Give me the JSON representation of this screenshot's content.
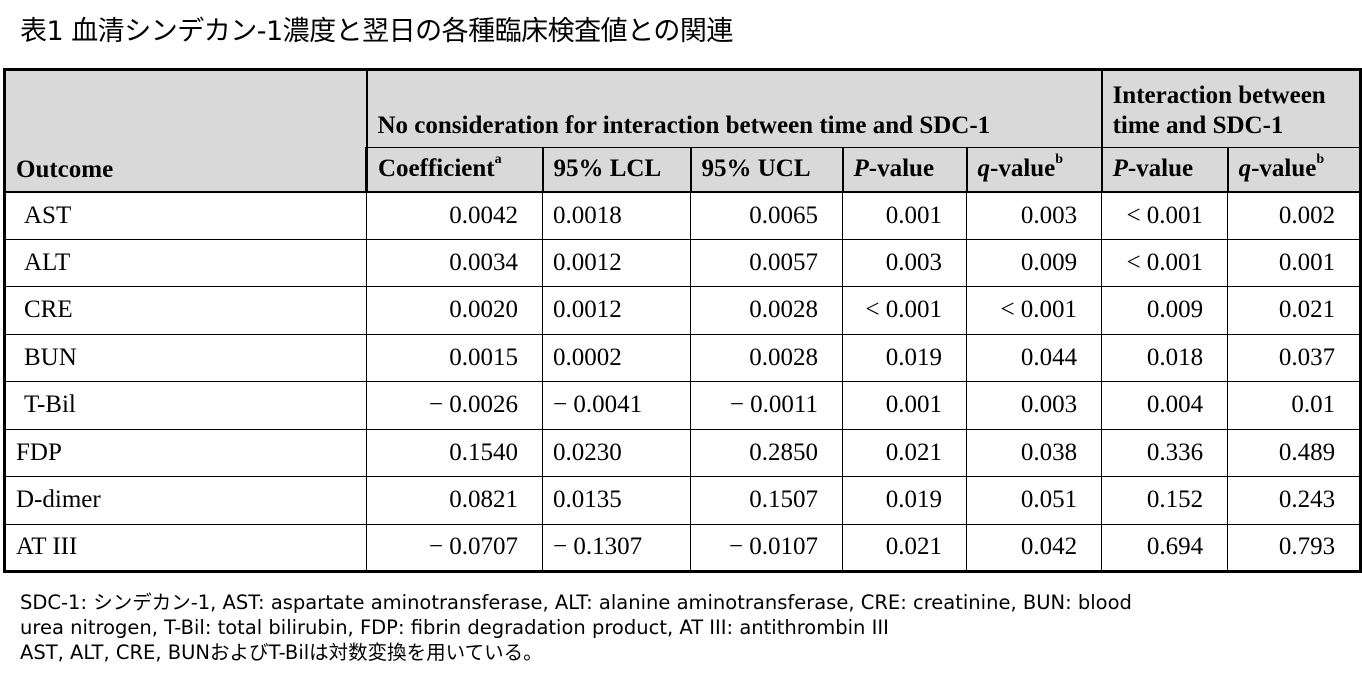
{
  "title": "表1 血清シンデカン-1濃度と翌日の各種臨床検査値との関連",
  "header": {
    "outcome": "Outcome",
    "group1": "No consideration for interaction between time and SDC-1",
    "group2_line1": "Interaction between",
    "group2_line2": "time and SDC-1",
    "coefficient": "Coefficient",
    "coefficient_sup": "a",
    "lcl": "95% LCL",
    "ucl": "95% UCL",
    "p_italic": "P",
    "p_rest": "-value",
    "q_italic": "q",
    "q_rest": "-value",
    "q_sup": "b"
  },
  "rows": [
    {
      "outcome": "AST",
      "coef": "0.0042",
      "lcl": "0.0018",
      "ucl": "0.0065",
      "p": "0.001",
      "q": "0.003",
      "ip": "< 0.001",
      "iq": "0.002"
    },
    {
      "outcome": "ALT",
      "coef": "0.0034",
      "lcl": "0.0012",
      "ucl": "0.0057",
      "p": "0.003",
      "q": "0.009",
      "ip": "< 0.001",
      "iq": "0.001"
    },
    {
      "outcome": "CRE",
      "coef": "0.0020",
      "lcl": "0.0012",
      "ucl": "0.0028",
      "p": "< 0.001",
      "q": "< 0.001",
      "ip": "0.009",
      "iq": "0.021"
    },
    {
      "outcome": "BUN",
      "coef": "0.0015",
      "lcl": "0.0002",
      "ucl": "0.0028",
      "p": "0.019",
      "q": "0.044",
      "ip": "0.018",
      "iq": "0.037"
    },
    {
      "outcome": "T-Bil",
      "coef": "− 0.0026",
      "lcl": "− 0.0041",
      "ucl": "− 0.0011",
      "p": "0.001",
      "q": "0.003",
      "ip": "0.004",
      "iq": "0.01"
    },
    {
      "outcome": "FDP",
      "coef": "0.1540",
      "lcl": "0.0230",
      "ucl": "0.2850",
      "p": "0.021",
      "q": "0.038",
      "ip": "0.336",
      "iq": "0.489"
    },
    {
      "outcome": "D-dimer",
      "coef": "0.0821",
      "lcl": "0.0135",
      "ucl": "0.1507",
      "p": "0.019",
      "q": "0.051",
      "ip": "0.152",
      "iq": "0.243"
    },
    {
      "outcome": "AT III",
      "coef": "− 0.0707",
      "lcl": "− 0.1307",
      "ucl": "− 0.0107",
      "p": "0.021",
      "q": "0.042",
      "ip": "0.694",
      "iq": "0.793"
    }
  ],
  "notes": {
    "line1": "SDC-1: シンデカン-1, AST: aspartate aminotransferase, ALT: alanine aminotransferase, CRE: creatinine, BUN: blood",
    "line2": "urea nitrogen, T-Bil: total bilirubin, FDP: fibrin degradation product, AT III: antithrombin III",
    "line3": "AST, ALT, CRE, BUNおよびT-Bilは対数変換を用いている。"
  }
}
